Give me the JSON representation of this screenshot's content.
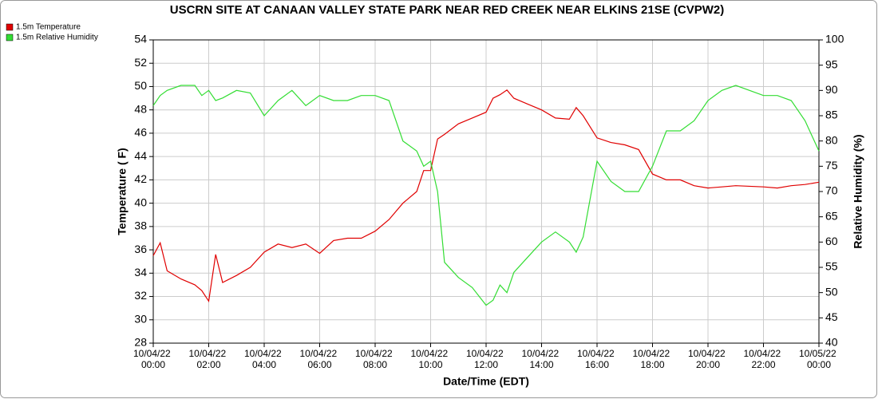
{
  "chart_data": {
    "type": "line",
    "title": "USCRN SITE AT CANAAN VALLEY STATE PARK NEAR RED CREEK NEAR ELKINS 21SE (CVPW2)",
    "x_label": "Date/Time (EDT)",
    "y_label": "Temperature ( F)",
    "y2_label": "Relative Humidity (%)",
    "x": [
      "10/04/22 00:00",
      "10/04/22 00:15",
      "10/04/22 00:30",
      "10/04/22 01:00",
      "10/04/22 01:30",
      "10/04/22 01:45",
      "10/04/22 02:00",
      "10/04/22 02:15",
      "10/04/22 02:30",
      "10/04/22 03:00",
      "10/04/22 03:30",
      "10/04/22 04:00",
      "10/04/22 04:30",
      "10/04/22 05:00",
      "10/04/22 05:30",
      "10/04/22 06:00",
      "10/04/22 06:30",
      "10/04/22 07:00",
      "10/04/22 07:30",
      "10/04/22 08:00",
      "10/04/22 08:30",
      "10/04/22 09:00",
      "10/04/22 09:30",
      "10/04/22 09:45",
      "10/04/22 10:00",
      "10/04/22 10:15",
      "10/04/22 10:30",
      "10/04/22 11:00",
      "10/04/22 11:30",
      "10/04/22 12:00",
      "10/04/22 12:15",
      "10/04/22 12:30",
      "10/04/22 12:45",
      "10/04/22 13:00",
      "10/04/22 13:30",
      "10/04/22 14:00",
      "10/04/22 14:30",
      "10/04/22 15:00",
      "10/04/22 15:15",
      "10/04/22 15:30",
      "10/04/22 16:00",
      "10/04/22 16:30",
      "10/04/22 17:00",
      "10/04/22 17:30",
      "10/04/22 18:00",
      "10/04/22 18:30",
      "10/04/22 19:00",
      "10/04/22 19:30",
      "10/04/22 20:00",
      "10/04/22 20:30",
      "10/04/22 21:00",
      "10/04/22 22:00",
      "10/04/22 22:30",
      "10/04/22 23:00",
      "10/04/22 23:30",
      "10/05/22 00:00"
    ],
    "series": [
      {
        "name": "1.5m Temperature",
        "color": "#e00000",
        "axis": "y",
        "values": [
          35.5,
          36.6,
          34.2,
          33.5,
          33.0,
          32.5,
          31.6,
          35.6,
          33.2,
          33.8,
          34.5,
          35.8,
          36.5,
          36.2,
          36.5,
          35.7,
          36.8,
          37.0,
          37.0,
          37.6,
          38.6,
          40.0,
          41.0,
          42.8,
          42.8,
          45.5,
          45.9,
          46.8,
          47.3,
          47.8,
          49.0,
          49.3,
          49.7,
          49.0,
          48.5,
          48.0,
          47.3,
          47.2,
          48.2,
          47.5,
          45.6,
          45.2,
          45.0,
          44.6,
          42.5,
          42.0,
          42.0,
          41.5,
          41.3,
          41.4,
          41.5,
          41.4,
          41.3,
          41.5,
          41.6,
          41.8
        ]
      },
      {
        "name": "1.5m Relative Humidity",
        "color": "#33dd33",
        "axis": "y2",
        "values": [
          87,
          89,
          90,
          91,
          91,
          89,
          90,
          88,
          88.5,
          90,
          89.5,
          85,
          88,
          90,
          87,
          89,
          88,
          88,
          89,
          89,
          88,
          80,
          78,
          75,
          76,
          70,
          56,
          53,
          51,
          47.5,
          48.5,
          51.5,
          50,
          54,
          57,
          60,
          62,
          60,
          58,
          61,
          76,
          72,
          70,
          70,
          75,
          82,
          82,
          84,
          88,
          90,
          91,
          89,
          89,
          88,
          84,
          78
        ]
      }
    ],
    "xlim": [
      "10/04/22 00:00",
      "10/05/22 00:00"
    ],
    "xticks": [
      "10/04/22 00:00",
      "10/04/22 02:00",
      "10/04/22 04:00",
      "10/04/22 06:00",
      "10/04/22 08:00",
      "10/04/22 10:00",
      "10/04/22 12:00",
      "10/04/22 14:00",
      "10/04/22 16:00",
      "10/04/22 18:00",
      "10/04/22 20:00",
      "10/04/22 22:00",
      "10/05/22 00:00"
    ],
    "ylim": [
      28,
      54
    ],
    "yticks": [
      28,
      30,
      32,
      34,
      36,
      38,
      40,
      42,
      44,
      46,
      48,
      50,
      52,
      54
    ],
    "y2lim": [
      40,
      100
    ],
    "y2ticks": [
      40,
      45,
      50,
      55,
      60,
      65,
      70,
      75,
      80,
      85,
      90,
      95,
      100
    ],
    "grid": true,
    "legend": "top-left"
  }
}
